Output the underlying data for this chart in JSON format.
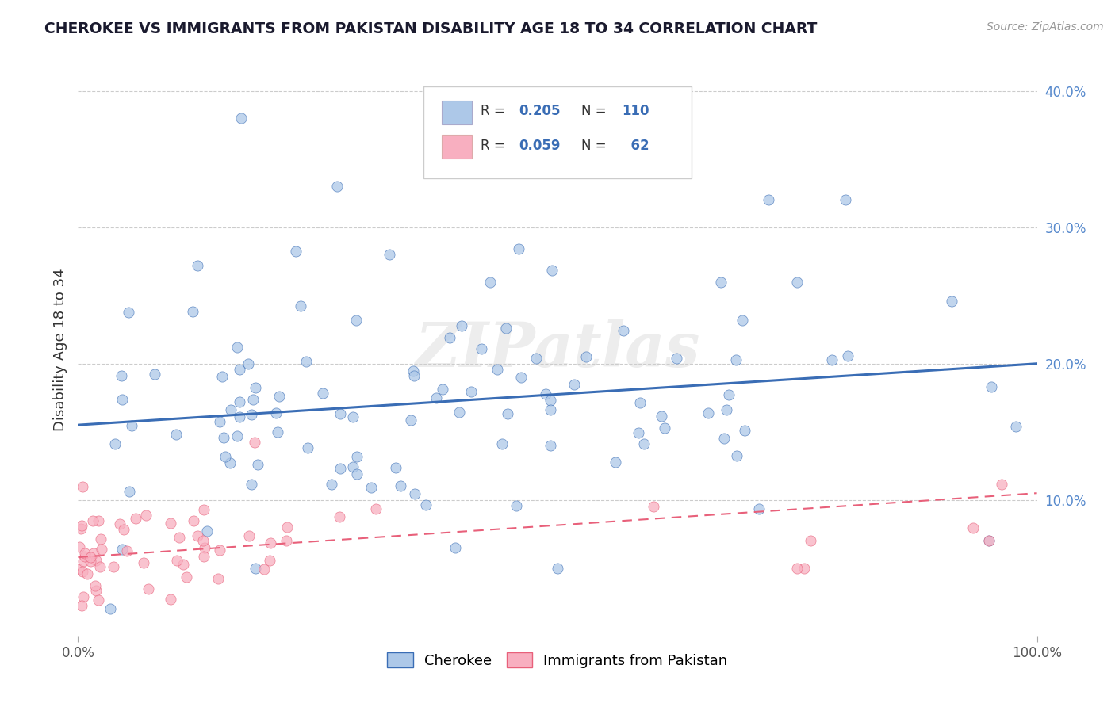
{
  "title": "CHEROKEE VS IMMIGRANTS FROM PAKISTAN DISABILITY AGE 18 TO 34 CORRELATION CHART",
  "source": "Source: ZipAtlas.com",
  "ylabel": "Disability Age 18 to 34",
  "xlim": [
    0,
    1.0
  ],
  "ylim": [
    0,
    0.42
  ],
  "xtick_positions": [
    0.0,
    1.0
  ],
  "xtick_labels": [
    "0.0%",
    "100.0%"
  ],
  "ytick_positions": [
    0.1,
    0.2,
    0.3,
    0.4
  ],
  "ytick_labels": [
    "10.0%",
    "20.0%",
    "30.0%",
    "40.0%"
  ],
  "cherokee_R": 0.205,
  "cherokee_N": 110,
  "pakistan_R": 0.059,
  "pakistan_N": 62,
  "cherokee_color": "#adc8e8",
  "pakistan_color": "#f8afc0",
  "cherokee_line_color": "#3a6db5",
  "pakistan_line_color": "#e8607a",
  "background_color": "#ffffff",
  "grid_color": "#cccccc",
  "legend_label_cherokee": "Cherokee",
  "legend_label_pakistan": "Immigrants from Pakistan",
  "watermark": "ZIPatlas",
  "cherokee_trend_x0": 0.0,
  "cherokee_trend_y0": 0.155,
  "cherokee_trend_x1": 1.0,
  "cherokee_trend_y1": 0.2,
  "pakistan_trend_x0": 0.0,
  "pakistan_trend_y0": 0.058,
  "pakistan_trend_x1": 1.0,
  "pakistan_trend_y1": 0.105
}
